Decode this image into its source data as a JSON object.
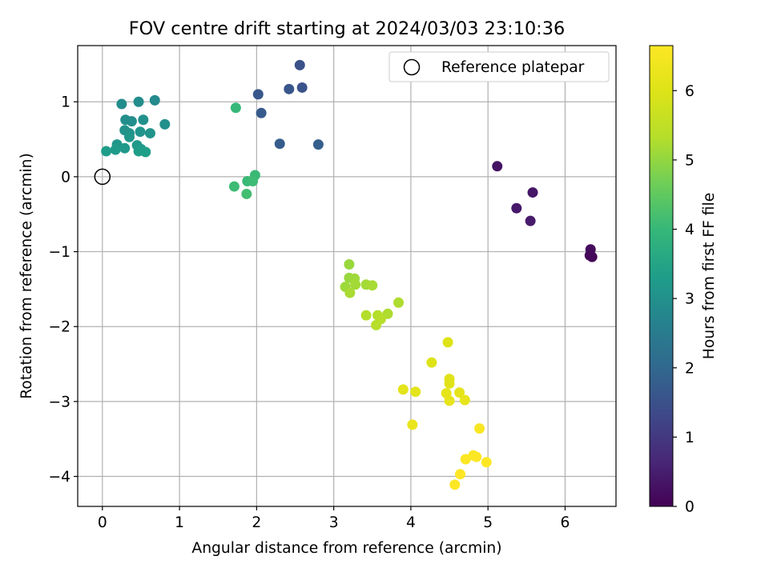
{
  "chart_data": {
    "type": "scatter",
    "title": "FOV centre drift starting at 2024/03/03 23:10:36",
    "xlabel": "Angular distance from reference (arcmin)",
    "ylabel": "Rotation from reference (arcmin)",
    "xlim": [
      -0.32,
      6.66
    ],
    "ylim": [
      -4.4,
      1.75
    ],
    "xticks": [
      0,
      1,
      2,
      3,
      4,
      5,
      6
    ],
    "yticks": [
      -4,
      -3,
      -2,
      -1,
      0,
      1
    ],
    "xtick_labels": [
      "0",
      "1",
      "2",
      "3",
      "4",
      "5",
      "6"
    ],
    "ytick_labels": [
      "−4",
      "−3",
      "−2",
      "−1",
      "0",
      "1"
    ],
    "grid": true,
    "colormap": "viridis",
    "colorbar": {
      "label": "Hours from first FF file",
      "min": 0,
      "max": 6.65,
      "ticks": [
        0,
        1,
        2,
        3,
        4,
        5,
        6
      ],
      "tick_labels": [
        "0",
        "1",
        "2",
        "3",
        "4",
        "5",
        "6"
      ]
    },
    "legend": {
      "label": "Reference platepar",
      "position": "top-right"
    },
    "reference_point": {
      "x": 0,
      "y": 0
    },
    "points": [
      {
        "x": 6.35,
        "y": -1.07,
        "c": 0.05
      },
      {
        "x": 6.32,
        "y": -1.05,
        "c": 0.1
      },
      {
        "x": 6.33,
        "y": -0.97,
        "c": 0.15
      },
      {
        "x": 5.12,
        "y": 0.14,
        "c": 0.3
      },
      {
        "x": 5.58,
        "y": -0.21,
        "c": 0.35
      },
      {
        "x": 5.37,
        "y": -0.42,
        "c": 0.4
      },
      {
        "x": 5.55,
        "y": -0.59,
        "c": 0.45
      },
      {
        "x": 2.56,
        "y": 1.49,
        "c": 1.5
      },
      {
        "x": 2.59,
        "y": 1.19,
        "c": 1.55
      },
      {
        "x": 2.42,
        "y": 1.17,
        "c": 1.6
      },
      {
        "x": 2.02,
        "y": 1.1,
        "c": 1.65
      },
      {
        "x": 2.06,
        "y": 0.85,
        "c": 1.7
      },
      {
        "x": 2.3,
        "y": 0.44,
        "c": 1.75
      },
      {
        "x": 2.8,
        "y": 0.43,
        "c": 1.8
      },
      {
        "x": 0.68,
        "y": 1.02,
        "c": 2.85
      },
      {
        "x": 0.47,
        "y": 1.0,
        "c": 2.9
      },
      {
        "x": 0.25,
        "y": 0.97,
        "c": 2.9
      },
      {
        "x": 0.3,
        "y": 0.76,
        "c": 2.95
      },
      {
        "x": 0.38,
        "y": 0.74,
        "c": 2.95
      },
      {
        "x": 0.53,
        "y": 0.76,
        "c": 3.0
      },
      {
        "x": 0.81,
        "y": 0.7,
        "c": 3.0
      },
      {
        "x": 0.29,
        "y": 0.62,
        "c": 3.05
      },
      {
        "x": 0.35,
        "y": 0.58,
        "c": 3.05
      },
      {
        "x": 0.49,
        "y": 0.6,
        "c": 3.1
      },
      {
        "x": 0.62,
        "y": 0.58,
        "c": 3.1
      },
      {
        "x": 0.35,
        "y": 0.53,
        "c": 3.15
      },
      {
        "x": 0.19,
        "y": 0.43,
        "c": 3.15
      },
      {
        "x": 0.29,
        "y": 0.38,
        "c": 3.2
      },
      {
        "x": 0.45,
        "y": 0.42,
        "c": 3.2
      },
      {
        "x": 0.5,
        "y": 0.37,
        "c": 3.25
      },
      {
        "x": 0.17,
        "y": 0.36,
        "c": 3.25
      },
      {
        "x": 0.05,
        "y": 0.34,
        "c": 3.3
      },
      {
        "x": 0.47,
        "y": 0.34,
        "c": 3.3
      },
      {
        "x": 0.56,
        "y": 0.33,
        "c": 3.35
      },
      {
        "x": 1.73,
        "y": 0.92,
        "c": 4.0
      },
      {
        "x": 1.98,
        "y": 0.02,
        "c": 4.05
      },
      {
        "x": 1.88,
        "y": -0.06,
        "c": 4.05
      },
      {
        "x": 1.95,
        "y": -0.06,
        "c": 4.1
      },
      {
        "x": 1.71,
        "y": -0.13,
        "c": 4.1
      },
      {
        "x": 1.87,
        "y": -0.23,
        "c": 4.15
      },
      {
        "x": 3.2,
        "y": -1.17,
        "c": 5.05
      },
      {
        "x": 3.2,
        "y": -1.35,
        "c": 5.05
      },
      {
        "x": 3.27,
        "y": -1.36,
        "c": 5.1
      },
      {
        "x": 3.15,
        "y": -1.47,
        "c": 5.1
      },
      {
        "x": 3.28,
        "y": -1.44,
        "c": 5.15
      },
      {
        "x": 3.42,
        "y": -1.44,
        "c": 5.15
      },
      {
        "x": 3.5,
        "y": -1.45,
        "c": 5.2
      },
      {
        "x": 3.21,
        "y": -1.55,
        "c": 5.2
      },
      {
        "x": 3.84,
        "y": -1.68,
        "c": 5.25
      },
      {
        "x": 3.7,
        "y": -1.83,
        "c": 5.25
      },
      {
        "x": 3.42,
        "y": -1.85,
        "c": 5.3
      },
      {
        "x": 3.57,
        "y": -1.85,
        "c": 5.3
      },
      {
        "x": 3.61,
        "y": -1.9,
        "c": 5.35
      },
      {
        "x": 3.55,
        "y": -1.98,
        "c": 5.35
      },
      {
        "x": 4.48,
        "y": -2.21,
        "c": 6.0
      },
      {
        "x": 4.27,
        "y": -2.48,
        "c": 6.0
      },
      {
        "x": 4.5,
        "y": -2.7,
        "c": 6.05
      },
      {
        "x": 4.5,
        "y": -2.76,
        "c": 6.05
      },
      {
        "x": 3.9,
        "y": -2.84,
        "c": 6.1
      },
      {
        "x": 4.06,
        "y": -2.87,
        "c": 6.1
      },
      {
        "x": 4.46,
        "y": -2.89,
        "c": 6.15
      },
      {
        "x": 4.63,
        "y": -2.88,
        "c": 6.15
      },
      {
        "x": 4.5,
        "y": -2.99,
        "c": 6.2
      },
      {
        "x": 4.7,
        "y": -2.98,
        "c": 6.2
      },
      {
        "x": 4.02,
        "y": -3.31,
        "c": 6.25
      },
      {
        "x": 4.89,
        "y": -3.36,
        "c": 6.55
      },
      {
        "x": 4.81,
        "y": -3.72,
        "c": 6.6
      },
      {
        "x": 4.85,
        "y": -3.74,
        "c": 6.6
      },
      {
        "x": 4.71,
        "y": -3.77,
        "c": 6.6
      },
      {
        "x": 4.98,
        "y": -3.81,
        "c": 6.65
      },
      {
        "x": 4.64,
        "y": -3.97,
        "c": 6.65
      },
      {
        "x": 4.57,
        "y": -4.11,
        "c": 6.65
      }
    ]
  }
}
